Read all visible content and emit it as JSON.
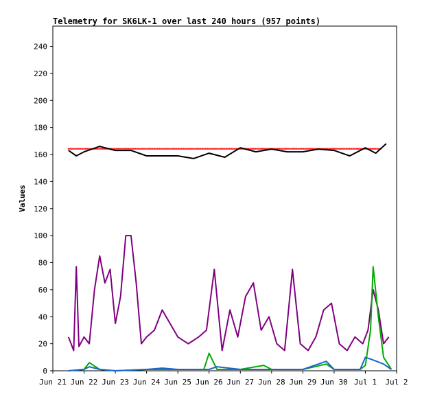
{
  "chart_data": {
    "type": "line",
    "title": "Telemetry for SK6LK-1 over last 240 hours (957 points)",
    "xlabel": "",
    "ylabel": "Values",
    "ylim": [
      0,
      255
    ],
    "xlim": [
      "2025-06-21T00:00",
      "2025-07-02T00:00"
    ],
    "x_ticks": [
      "Jun 21",
      "Jun 22",
      "Jun 23",
      "Jun 24",
      "Jun 25",
      "Jun 26",
      "Jun 27",
      "Jun 28",
      "Jun 29",
      "Jun 30",
      "Jul 1",
      "Jul 2"
    ],
    "y_ticks": [
      0,
      20,
      40,
      60,
      80,
      100,
      120,
      140,
      160,
      180,
      200,
      220,
      240
    ],
    "grid": false,
    "legend": "none",
    "series": [
      {
        "color": "#ff0000",
        "style": "points",
        "x": [
          "2025-06-21T12:00",
          "2025-06-22T00:00",
          "2025-06-23T00:00",
          "2025-06-24T00:00",
          "2025-06-25T00:00",
          "2025-06-26T00:00",
          "2025-06-27T00:00",
          "2025-06-28T00:00",
          "2025-06-29T00:00",
          "2025-06-30T00:00",
          "2025-07-01T00:00",
          "2025-07-01T12:00"
        ],
        "values": [
          164,
          164,
          164,
          164,
          164,
          164,
          164,
          164,
          164,
          164,
          164,
          164
        ]
      },
      {
        "color": "#000000",
        "style": "line",
        "x": [
          "2025-06-21T12:00",
          "2025-06-21T18:00",
          "2025-06-22T00:00",
          "2025-06-22T12:00",
          "2025-06-23T00:00",
          "2025-06-23T12:00",
          "2025-06-24T00:00",
          "2025-06-24T12:00",
          "2025-06-25T00:00",
          "2025-06-25T12:00",
          "2025-06-26T00:00",
          "2025-06-26T12:00",
          "2025-06-27T00:00",
          "2025-06-27T12:00",
          "2025-06-28T00:00",
          "2025-06-28T12:00",
          "2025-06-29T00:00",
          "2025-06-29T12:00",
          "2025-06-30T00:00",
          "2025-06-30T12:00",
          "2025-07-01T00:00",
          "2025-07-01T08:00",
          "2025-07-01T16:00"
        ],
        "values": [
          163,
          159,
          162,
          166,
          163,
          163,
          159,
          159,
          159,
          157,
          161,
          158,
          165,
          162,
          164,
          162,
          162,
          164,
          163,
          159,
          165,
          161,
          168
        ]
      },
      {
        "color": "#800080",
        "style": "line",
        "x": [
          "2025-06-21T12:00",
          "2025-06-21T16:00",
          "2025-06-21T18:00",
          "2025-06-21T20:00",
          "2025-06-22T00:00",
          "2025-06-22T04:00",
          "2025-06-22T08:00",
          "2025-06-22T12:00",
          "2025-06-22T16:00",
          "2025-06-22T20:00",
          "2025-06-23T00:00",
          "2025-06-23T04:00",
          "2025-06-23T08:00",
          "2025-06-23T12:00",
          "2025-06-23T16:00",
          "2025-06-23T20:00",
          "2025-06-24T00:00",
          "2025-06-24T06:00",
          "2025-06-24T12:00",
          "2025-06-24T18:00",
          "2025-06-25T00:00",
          "2025-06-25T08:00",
          "2025-06-25T16:00",
          "2025-06-25T22:00",
          "2025-06-26T04:00",
          "2025-06-26T10:00",
          "2025-06-26T16:00",
          "2025-06-26T22:00",
          "2025-06-27T04:00",
          "2025-06-27T10:00",
          "2025-06-27T16:00",
          "2025-06-27T22:00",
          "2025-06-28T04:00",
          "2025-06-28T10:00",
          "2025-06-28T16:00",
          "2025-06-28T22:00",
          "2025-06-29T04:00",
          "2025-06-29T10:00",
          "2025-06-29T16:00",
          "2025-06-29T22:00",
          "2025-06-30T04:00",
          "2025-06-30T10:00",
          "2025-06-30T16:00",
          "2025-06-30T22:00",
          "2025-07-01T02:00",
          "2025-07-01T06:00",
          "2025-07-01T10:00",
          "2025-07-01T14:00",
          "2025-07-01T18:00"
        ],
        "values": [
          25,
          15,
          77,
          18,
          25,
          20,
          60,
          85,
          65,
          75,
          35,
          55,
          100,
          100,
          65,
          20,
          25,
          30,
          45,
          35,
          25,
          20,
          25,
          30,
          75,
          15,
          45,
          25,
          55,
          65,
          30,
          40,
          20,
          15,
          75,
          20,
          15,
          25,
          45,
          50,
          20,
          15,
          25,
          20,
          30,
          60,
          45,
          20,
          25
        ]
      },
      {
        "color": "#00aa00",
        "style": "line",
        "x": [
          "2025-06-21T12:00",
          "2025-06-22T00:00",
          "2025-06-22T04:00",
          "2025-06-22T12:00",
          "2025-06-23T00:00",
          "2025-06-24T00:00",
          "2025-06-25T00:00",
          "2025-06-25T20:00",
          "2025-06-26T00:00",
          "2025-06-26T06:00",
          "2025-06-27T00:00",
          "2025-06-27T18:00",
          "2025-06-28T00:00",
          "2025-06-29T00:00",
          "2025-06-29T18:00",
          "2025-06-30T00:00",
          "2025-06-30T20:00",
          "2025-07-01T00:00",
          "2025-07-01T04:00",
          "2025-07-01T06:00",
          "2025-07-01T10:00",
          "2025-07-01T14:00",
          "2025-07-01T20:00"
        ],
        "values": [
          0,
          1,
          6,
          1,
          0,
          1,
          1,
          1,
          13,
          1,
          1,
          4,
          1,
          1,
          5,
          1,
          1,
          4,
          30,
          77,
          40,
          10,
          1
        ]
      },
      {
        "color": "#1a66cc",
        "style": "line",
        "x": [
          "2025-06-21T12:00",
          "2025-06-22T00:00",
          "2025-06-22T04:00",
          "2025-06-22T12:00",
          "2025-06-23T00:00",
          "2025-06-24T00:00",
          "2025-06-24T12:00",
          "2025-06-25T00:00",
          "2025-06-26T00:00",
          "2025-06-26T06:00",
          "2025-06-27T00:00",
          "2025-06-28T00:00",
          "2025-06-29T00:00",
          "2025-06-29T18:00",
          "2025-06-30T00:00",
          "2025-06-30T20:00",
          "2025-07-01T00:00",
          "2025-07-01T06:00",
          "2025-07-01T14:00",
          "2025-07-01T20:00"
        ],
        "values": [
          0,
          1,
          3,
          1,
          0,
          1,
          2,
          1,
          1,
          3,
          1,
          1,
          1,
          7,
          1,
          1,
          10,
          8,
          5,
          1
        ]
      }
    ]
  }
}
